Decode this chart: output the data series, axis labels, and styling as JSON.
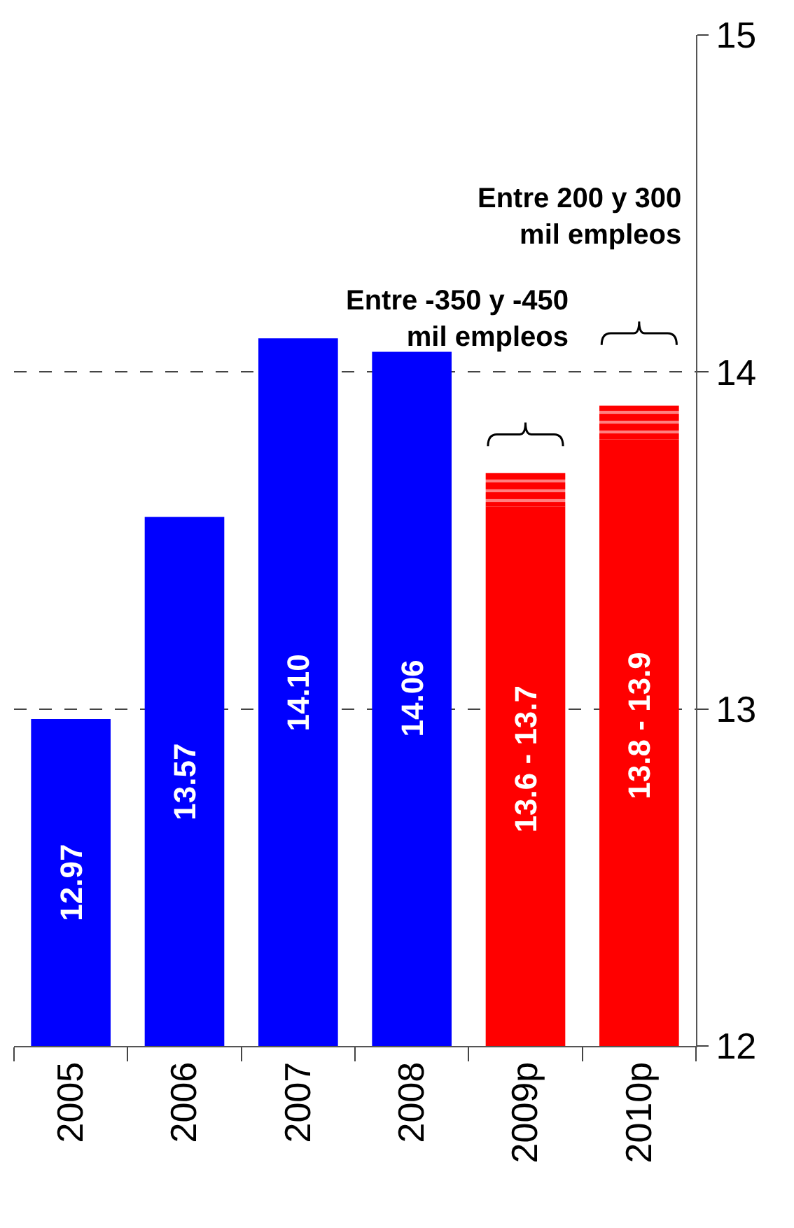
{
  "chart_data": {
    "type": "bar",
    "categories": [
      "2005",
      "2006",
      "2007",
      "2008",
      "2009p",
      "2010p"
    ],
    "series": [
      {
        "color": "#0000ff",
        "colors": [
          "#0000ff",
          "#0000ff",
          "#0000ff",
          "#0000ff",
          "#ff0000",
          "#ff0000"
        ],
        "values": [
          12.97,
          13.57,
          14.1,
          14.06,
          13.6,
          13.8
        ],
        "value_labels": [
          "12.97",
          "13.57",
          "14.10",
          "14.06",
          "13.6 - 13.7",
          "13.8 - 13.9"
        ]
      },
      {
        "color": "#ff0000",
        "base": [
          null,
          null,
          null,
          null,
          13.6,
          13.8
        ],
        "values": [
          null,
          null,
          null,
          null,
          0.1,
          0.1
        ]
      }
    ],
    "ylim": [
      12,
      15
    ],
    "yticks": [
      12,
      13,
      14,
      15
    ],
    "grid": "y",
    "annotations": [
      "Entre -350 y -450\nmil empleos",
      "Entre 200 y 300\nmil empleos"
    ]
  }
}
